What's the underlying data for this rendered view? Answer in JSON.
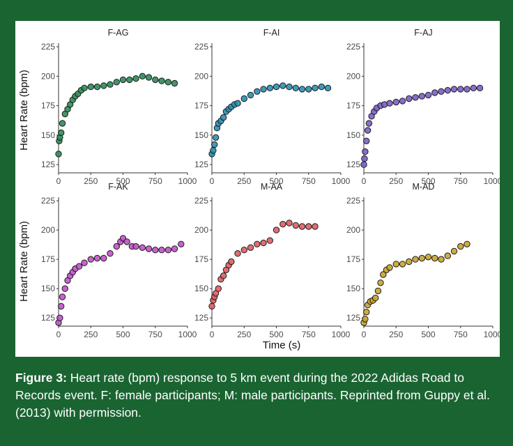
{
  "chart_data": {
    "type": "scatter",
    "xlabel": "Time (s)",
    "ylabel": "Heart Rate (bpm)",
    "xlim": [
      0,
      1000
    ],
    "ylim": [
      118,
      228
    ],
    "x_ticks": [
      "0",
      "250",
      "500",
      "750",
      "1000"
    ],
    "y_ticks": [
      "125",
      "150",
      "175",
      "200",
      "225"
    ],
    "grid": false,
    "panels": [
      {
        "title": "F-AG",
        "color": "#2e8b57",
        "points": [
          [
            0,
            134
          ],
          [
            5,
            145
          ],
          [
            10,
            148
          ],
          [
            20,
            152
          ],
          [
            30,
            160
          ],
          [
            50,
            168
          ],
          [
            70,
            172
          ],
          [
            90,
            176
          ],
          [
            110,
            180
          ],
          [
            130,
            183
          ],
          [
            150,
            185
          ],
          [
            175,
            188
          ],
          [
            200,
            190
          ],
          [
            250,
            191
          ],
          [
            300,
            191
          ],
          [
            350,
            192
          ],
          [
            400,
            193
          ],
          [
            450,
            195
          ],
          [
            500,
            197
          ],
          [
            550,
            197
          ],
          [
            600,
            198
          ],
          [
            650,
            200
          ],
          [
            700,
            199
          ],
          [
            750,
            197
          ],
          [
            800,
            196
          ],
          [
            850,
            195
          ],
          [
            900,
            194
          ]
        ]
      },
      {
        "title": "F-AI",
        "color": "#2a8fb3",
        "points": [
          [
            0,
            134
          ],
          [
            10,
            137
          ],
          [
            20,
            142
          ],
          [
            30,
            148
          ],
          [
            40,
            156
          ],
          [
            50,
            160
          ],
          [
            70,
            162
          ],
          [
            90,
            165
          ],
          [
            110,
            170
          ],
          [
            130,
            172
          ],
          [
            150,
            174
          ],
          [
            175,
            176
          ],
          [
            200,
            177
          ],
          [
            250,
            181
          ],
          [
            300,
            184
          ],
          [
            350,
            187
          ],
          [
            400,
            189
          ],
          [
            450,
            190
          ],
          [
            500,
            191
          ],
          [
            550,
            192
          ],
          [
            600,
            191
          ],
          [
            650,
            190
          ],
          [
            700,
            189
          ],
          [
            750,
            189
          ],
          [
            800,
            190
          ],
          [
            850,
            191
          ],
          [
            900,
            190
          ]
        ]
      },
      {
        "title": "F-AJ",
        "color": "#7a5fc8",
        "points": [
          [
            0,
            125
          ],
          [
            5,
            130
          ],
          [
            10,
            136
          ],
          [
            20,
            145
          ],
          [
            30,
            154
          ],
          [
            40,
            160
          ],
          [
            60,
            166
          ],
          [
            80,
            170
          ],
          [
            100,
            173
          ],
          [
            130,
            175
          ],
          [
            160,
            176
          ],
          [
            200,
            177
          ],
          [
            250,
            178
          ],
          [
            300,
            179
          ],
          [
            350,
            181
          ],
          [
            400,
            182
          ],
          [
            450,
            183
          ],
          [
            500,
            184
          ],
          [
            550,
            186
          ],
          [
            600,
            187
          ],
          [
            650,
            188
          ],
          [
            700,
            189
          ],
          [
            750,
            189
          ],
          [
            800,
            189
          ],
          [
            850,
            190
          ],
          [
            900,
            190
          ]
        ]
      },
      {
        "title": "F-AK",
        "color": "#c152c9",
        "points": [
          [
            0,
            121
          ],
          [
            10,
            125
          ],
          [
            20,
            135
          ],
          [
            30,
            143
          ],
          [
            50,
            150
          ],
          [
            70,
            157
          ],
          [
            90,
            161
          ],
          [
            110,
            164
          ],
          [
            130,
            167
          ],
          [
            160,
            169
          ],
          [
            200,
            172
          ],
          [
            250,
            175
          ],
          [
            300,
            176
          ],
          [
            350,
            176
          ],
          [
            400,
            180
          ],
          [
            450,
            186
          ],
          [
            480,
            190
          ],
          [
            500,
            193
          ],
          [
            530,
            190
          ],
          [
            570,
            186
          ],
          [
            600,
            186
          ],
          [
            650,
            185
          ],
          [
            700,
            184
          ],
          [
            750,
            183
          ],
          [
            800,
            183
          ],
          [
            850,
            183
          ],
          [
            900,
            184
          ],
          [
            950,
            188
          ]
        ]
      },
      {
        "title": "M-AA",
        "color": "#dd5e63",
        "points": [
          [
            0,
            135
          ],
          [
            10,
            140
          ],
          [
            20,
            143
          ],
          [
            30,
            146
          ],
          [
            50,
            150
          ],
          [
            70,
            158
          ],
          [
            90,
            161
          ],
          [
            110,
            166
          ],
          [
            130,
            170
          ],
          [
            150,
            173
          ],
          [
            200,
            180
          ],
          [
            250,
            183
          ],
          [
            300,
            185
          ],
          [
            350,
            188
          ],
          [
            400,
            189
          ],
          [
            450,
            191
          ],
          [
            500,
            200
          ],
          [
            550,
            205
          ],
          [
            600,
            206
          ],
          [
            650,
            204
          ],
          [
            700,
            203
          ],
          [
            750,
            203
          ],
          [
            800,
            203
          ]
        ]
      },
      {
        "title": "M-AD",
        "color": "#c9a32e",
        "points": [
          [
            0,
            121
          ],
          [
            10,
            124
          ],
          [
            20,
            130
          ],
          [
            30,
            136
          ],
          [
            50,
            139
          ],
          [
            70,
            140
          ],
          [
            90,
            142
          ],
          [
            110,
            148
          ],
          [
            130,
            155
          ],
          [
            150,
            162
          ],
          [
            175,
            166
          ],
          [
            200,
            168
          ],
          [
            250,
            171
          ],
          [
            300,
            171
          ],
          [
            350,
            173
          ],
          [
            400,
            175
          ],
          [
            450,
            176
          ],
          [
            500,
            177
          ],
          [
            550,
            176
          ],
          [
            600,
            175
          ],
          [
            650,
            178
          ],
          [
            700,
            182
          ],
          [
            750,
            186
          ],
          [
            800,
            188
          ]
        ]
      }
    ]
  },
  "caption": {
    "label": "Figure 3:",
    "text": "Heart rate (bpm) response to 5 km event during the 2022 Adidas Road to Records event. F: female participants; M: male participants. Reprinted from Guppy et al. (2013) with permission."
  }
}
